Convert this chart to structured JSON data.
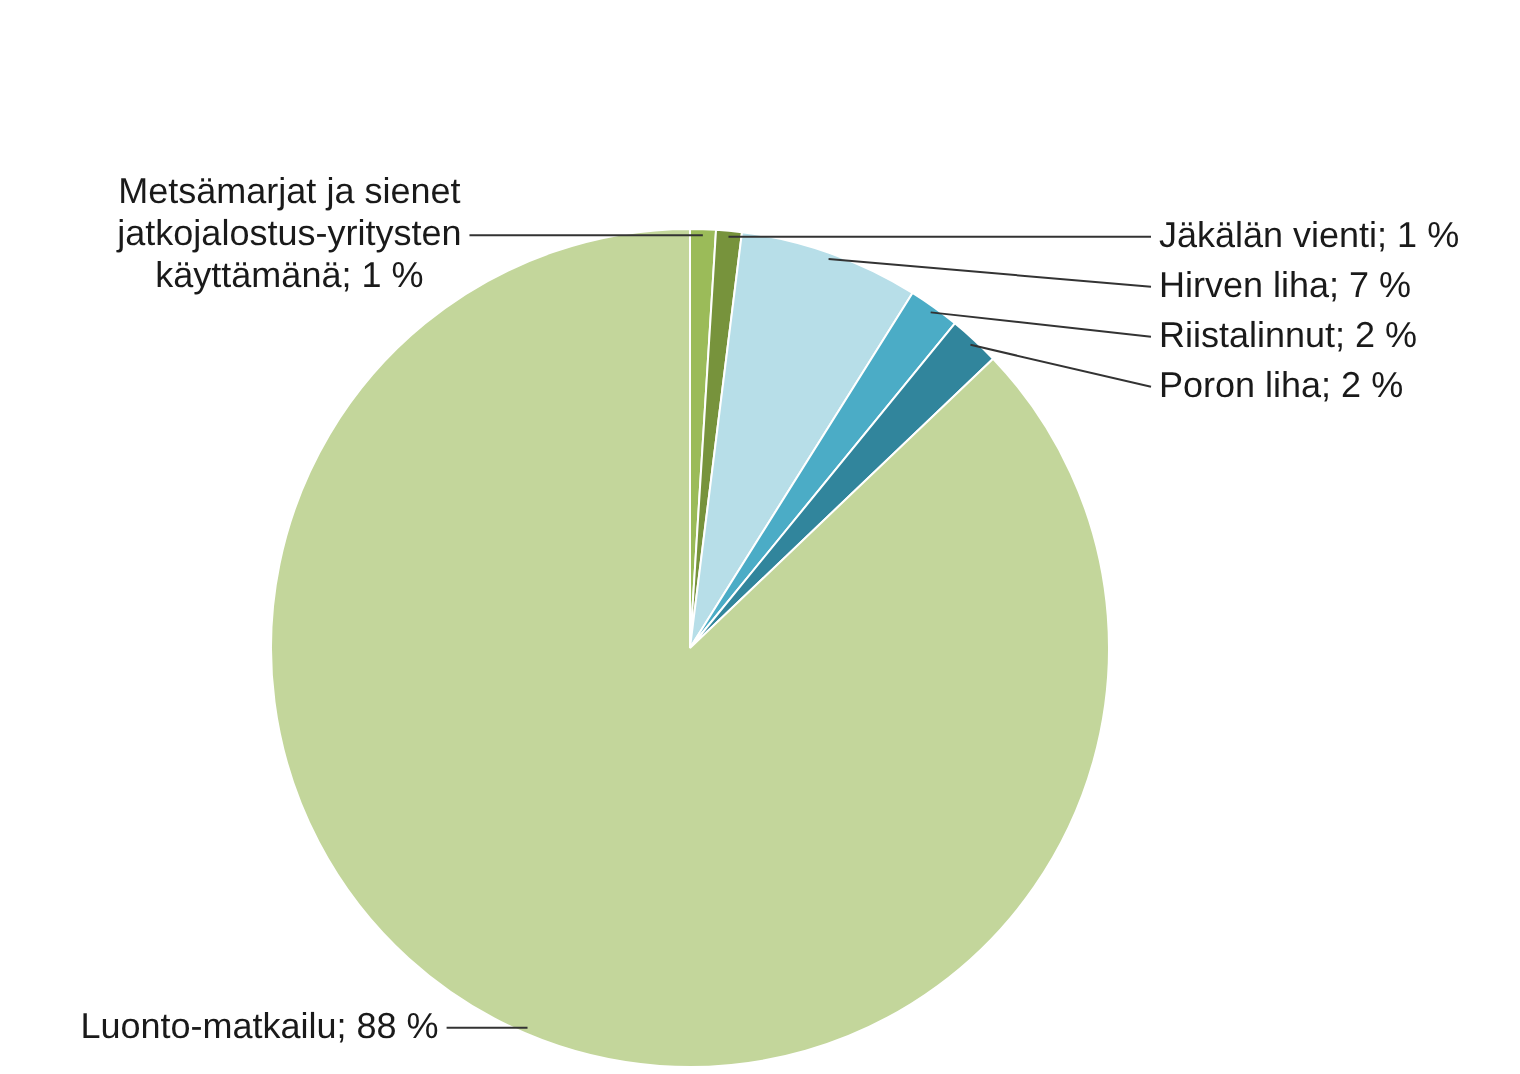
{
  "chart_data": {
    "type": "pie",
    "categories": [
      "Metsämarjat ja sienet jatkojalostus-yritysten käyttämänä",
      "Jäkälän vienti",
      "Hirven liha",
      "Riistalinnut",
      "Poron liha",
      "Luonto-matkailu"
    ],
    "values": [
      1,
      1,
      7,
      2,
      2,
      88
    ],
    "value_labels": [
      "1 %",
      "1 %",
      "7 %",
      "2 %",
      "2 %",
      "88 %"
    ],
    "colors": [
      "#9bbb59",
      "#77933c",
      "#b7dee8",
      "#4bacc6",
      "#31859c",
      "#c3d69b"
    ],
    "legend": false
  }
}
